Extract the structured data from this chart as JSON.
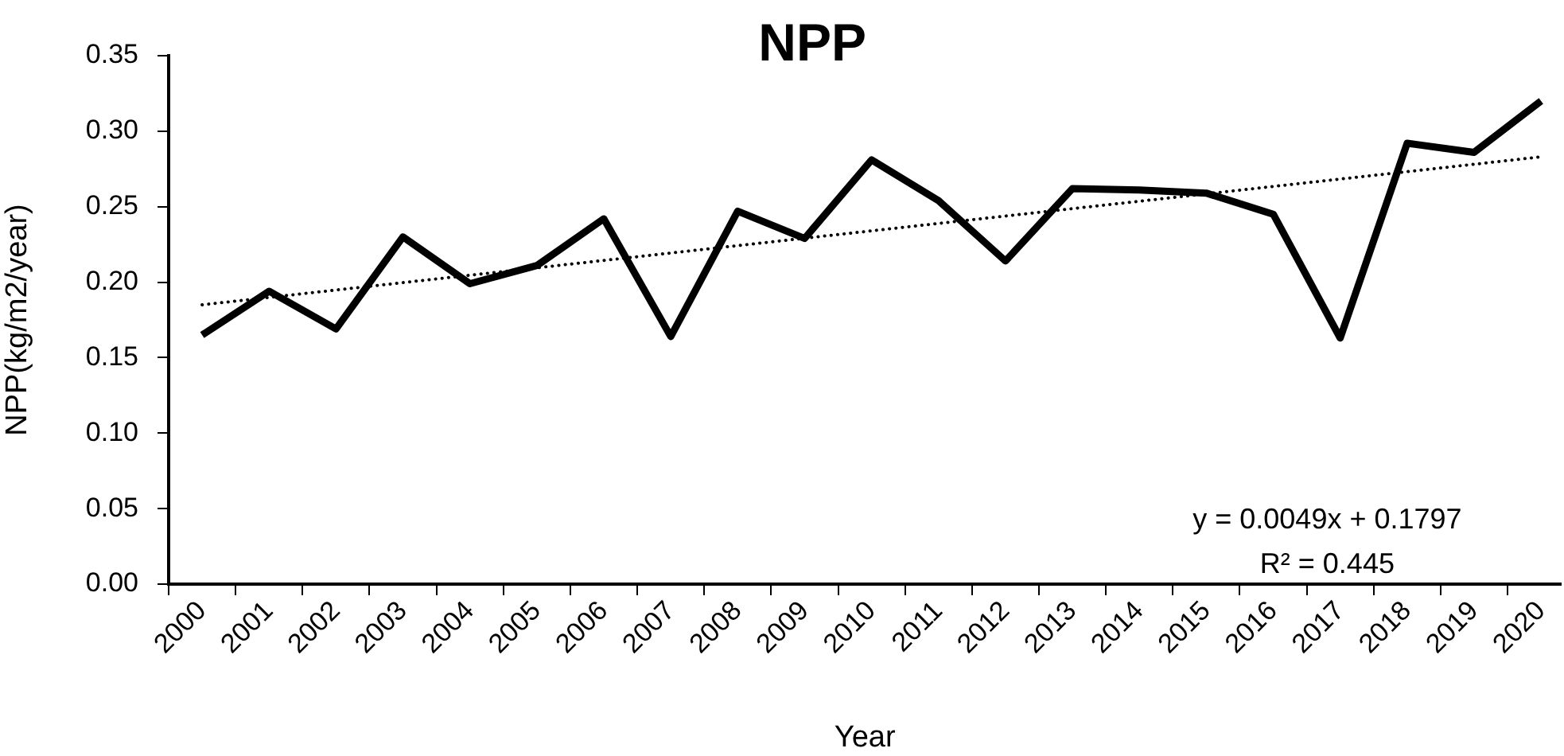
{
  "chart_data": {
    "type": "line",
    "title": "NPP",
    "xlabel": "Year",
    "ylabel": "NPP(kg/m2/year)",
    "x": [
      2000,
      2001,
      2002,
      2003,
      2004,
      2005,
      2006,
      2007,
      2008,
      2009,
      2010,
      2011,
      2012,
      2013,
      2014,
      2015,
      2016,
      2017,
      2018,
      2019,
      2020
    ],
    "series": [
      {
        "color": "#000000",
        "line_style": "solid",
        "values": [
          0.165,
          0.194,
          0.169,
          0.23,
          0.199,
          0.211,
          0.242,
          0.164,
          0.247,
          0.229,
          0.281,
          0.254,
          0.214,
          0.262,
          0.261,
          0.259,
          0.245,
          0.163,
          0.292,
          0.286,
          0.32
        ]
      },
      {
        "type": "line",
        "x": [
          2000,
          2020
        ],
        "color": "#000000",
        "line_style": "dotted",
        "values": [
          0.185,
          0.283
        ]
      }
    ],
    "xlim": [
      1999.5,
      2020.3
    ],
    "xticks": [
      {
        "value": 1999.5,
        "label": null
      },
      2000,
      {
        "value": 2000.5,
        "label": null
      },
      2001,
      {
        "value": 2001.5,
        "label": null
      },
      2002,
      {
        "value": 2002.5,
        "label": null
      },
      2003,
      {
        "value": 2003.5,
        "label": null
      },
      2004,
      {
        "value": 2004.5,
        "label": null
      },
      2005,
      {
        "value": 2005.5,
        "label": null
      },
      2006,
      {
        "value": 2006.5,
        "label": null
      },
      2007,
      {
        "value": 2007.5,
        "label": null
      },
      2008,
      {
        "value": 2008.5,
        "label": null
      },
      2009,
      {
        "value": 2009.5,
        "label": null
      },
      2010,
      {
        "value": 2010.5,
        "label": null
      },
      2011,
      {
        "value": 2011.5,
        "label": null
      },
      2012,
      {
        "value": 2012.5,
        "label": null
      },
      2013,
      {
        "value": 2013.5,
        "label": null
      },
      2014,
      {
        "value": 2014.5,
        "label": null
      },
      2015,
      {
        "value": 2015.5,
        "label": null
      },
      2016,
      {
        "value": 2016.5,
        "label": null
      },
      2017,
      {
        "value": 2017.5,
        "label": null
      },
      2018,
      {
        "value": 2018.5,
        "label": null
      },
      2019,
      {
        "value": 2019.5,
        "label": null
      },
      2020
    ],
    "ylim": [
      0,
      0.35
    ],
    "yticks": [
      {
        "value": 0,
        "label": "0.00"
      },
      {
        "value": 0.05,
        "label": "0.05"
      },
      {
        "value": 0.1,
        "label": "0.10"
      },
      {
        "value": 0.15,
        "label": "0.15"
      },
      {
        "value": 0.2,
        "label": "0.20"
      },
      {
        "value": 0.25,
        "label": "0.25"
      },
      {
        "value": 0.3,
        "label": "0.30"
      },
      {
        "value": 0.35,
        "label": "0.35"
      }
    ],
    "marker": "none",
    "annotations": [
      "y = 0.0049x + 0.1797",
      "R² = 0.445"
    ]
  }
}
